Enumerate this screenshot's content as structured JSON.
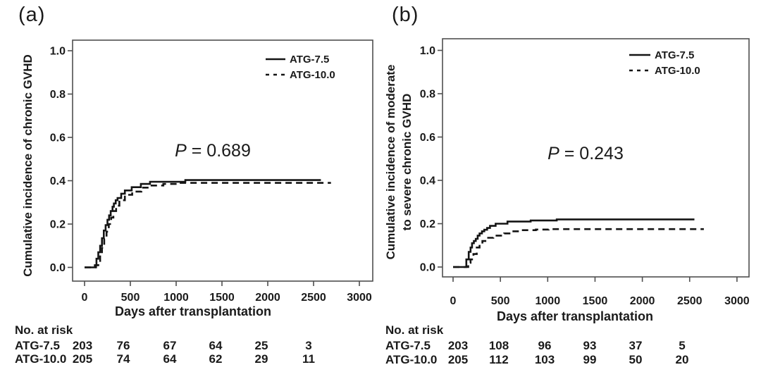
{
  "colors": {
    "ink": "#1a1a1a",
    "line": "#141414",
    "frame": "#4f4f4f",
    "background": "#ffffff"
  },
  "panels": [
    {
      "panel_label": "(a)",
      "ylabel_lines": [
        "Cumulative incidence of chronic GVHD"
      ],
      "xlabel": "Days after transplantation",
      "p_symbol": "P",
      "p_rest": " = 0.689",
      "p_value_text": "P = 0.689",
      "ytick_labels": [
        "1.0",
        "0.8",
        "0.6",
        "0.4",
        "0.2",
        "0.0"
      ],
      "xtick_labels": [
        "0",
        "500",
        "1000",
        "1500",
        "2000",
        "2500",
        "3000"
      ],
      "legend_labels": [
        "ATG-7.5",
        "ATG-10.0"
      ],
      "at_risk": {
        "title": "No. at risk",
        "rows": [
          {
            "label": "ATG-7.5",
            "values": [
              "203",
              "76",
              "67",
              "64",
              "25",
              "3"
            ]
          },
          {
            "label": "ATG-10.0",
            "values": [
              "205",
              "74",
              "64",
              "62",
              "29",
              "11"
            ]
          }
        ]
      }
    },
    {
      "panel_label": "(b)",
      "ylabel_lines": [
        "Cumulative incidence of moderate",
        "to severe chronic GVHD"
      ],
      "xlabel": "Days after transplantation",
      "p_symbol": "P",
      "p_rest": " = 0.243",
      "p_value_text": "P = 0.243",
      "ytick_labels": [
        "1.0",
        "0.8",
        "0.6",
        "0.4",
        "0.2",
        "0.0"
      ],
      "xtick_labels": [
        "0",
        "500",
        "1000",
        "1500",
        "2000",
        "2500",
        "3000"
      ],
      "legend_labels": [
        "ATG-7.5",
        "ATG-10.0"
      ],
      "at_risk": {
        "title": "No. at risk",
        "rows": [
          {
            "label": "ATG-7.5",
            "values": [
              "203",
              "108",
              "96",
              "93",
              "37",
              "5"
            ]
          },
          {
            "label": "ATG-10.0",
            "values": [
              "205",
              "112",
              "103",
              "99",
              "50",
              "20"
            ]
          }
        ]
      }
    }
  ],
  "chart_data": [
    {
      "type": "line",
      "subtype": "step-cumulative-incidence",
      "title": "(a)",
      "xlabel": "Days after transplantation",
      "ylabel": "Cumulative incidence of chronic GVHD",
      "xlim": [
        0,
        3000
      ],
      "ylim": [
        0,
        1.0
      ],
      "xticks": [
        0,
        500,
        1000,
        1500,
        2000,
        2500,
        3000
      ],
      "yticks": [
        1.0,
        0.8,
        0.6,
        0.4,
        0.2,
        0.0
      ],
      "grid": false,
      "legend_position": "top-right",
      "annotation": "P = 0.689",
      "series": [
        {
          "name": "ATG-7.5",
          "line_style": "solid",
          "x": [
            0,
            85,
            112,
            130,
            150,
            170,
            190,
            210,
            230,
            250,
            268,
            285,
            305,
            320,
            340,
            360,
            400,
            440,
            515,
            615,
            715,
            1100,
            2580
          ],
          "y": [
            0,
            0,
            0.01,
            0.04,
            0.07,
            0.1,
            0.135,
            0.17,
            0.195,
            0.22,
            0.24,
            0.26,
            0.28,
            0.295,
            0.31,
            0.32,
            0.34,
            0.355,
            0.37,
            0.385,
            0.395,
            0.403,
            0.403
          ]
        },
        {
          "name": "ATG-10.0",
          "line_style": "dashed",
          "x": [
            0,
            95,
            125,
            150,
            170,
            190,
            215,
            240,
            265,
            290,
            315,
            345,
            380,
            440,
            520,
            620,
            720,
            860,
            1010,
            2690
          ],
          "y": [
            0,
            0,
            0.01,
            0.03,
            0.06,
            0.09,
            0.13,
            0.165,
            0.2,
            0.23,
            0.26,
            0.285,
            0.31,
            0.335,
            0.35,
            0.368,
            0.378,
            0.385,
            0.39,
            0.39
          ]
        }
      ],
      "number_at_risk": {
        "times": [
          0,
          500,
          1000,
          1500,
          2000,
          2500
        ],
        "ATG-7.5": [
          203,
          76,
          67,
          64,
          25,
          3
        ],
        "ATG-10.0": [
          205,
          74,
          64,
          62,
          29,
          11
        ]
      }
    },
    {
      "type": "line",
      "subtype": "step-cumulative-incidence",
      "title": "(b)",
      "xlabel": "Days after transplantation",
      "ylabel": "Cumulative incidence of moderate to severe chronic GVHD",
      "xlim": [
        0,
        3000
      ],
      "ylim": [
        0,
        1.0
      ],
      "xticks": [
        0,
        500,
        1000,
        1500,
        2000,
        2500,
        3000
      ],
      "yticks": [
        1.0,
        0.8,
        0.6,
        0.4,
        0.2,
        0.0
      ],
      "grid": false,
      "legend_position": "top-right",
      "annotation": "P = 0.243",
      "series": [
        {
          "name": "ATG-7.5",
          "line_style": "solid",
          "x": [
            0,
            105,
            140,
            165,
            185,
            200,
            220,
            240,
            260,
            280,
            305,
            330,
            360,
            390,
            450,
            575,
            820,
            1095,
            2550
          ],
          "y": [
            0,
            0,
            0.035,
            0.07,
            0.09,
            0.11,
            0.12,
            0.13,
            0.145,
            0.155,
            0.165,
            0.172,
            0.18,
            0.19,
            0.2,
            0.21,
            0.215,
            0.22,
            0.22
          ]
        },
        {
          "name": "ATG-10.0",
          "line_style": "dashed",
          "x": [
            0,
            115,
            160,
            185,
            215,
            250,
            280,
            310,
            355,
            425,
            540,
            615,
            725,
            875,
            1010,
            2650
          ],
          "y": [
            0,
            0,
            0.02,
            0.035,
            0.06,
            0.09,
            0.105,
            0.12,
            0.135,
            0.145,
            0.155,
            0.165,
            0.17,
            0.173,
            0.175,
            0.175
          ]
        }
      ],
      "number_at_risk": {
        "times": [
          0,
          500,
          1000,
          1500,
          2000,
          2500
        ],
        "ATG-7.5": [
          203,
          108,
          96,
          93,
          37,
          5
        ],
        "ATG-10.0": [
          205,
          112,
          103,
          99,
          50,
          20
        ]
      }
    }
  ]
}
